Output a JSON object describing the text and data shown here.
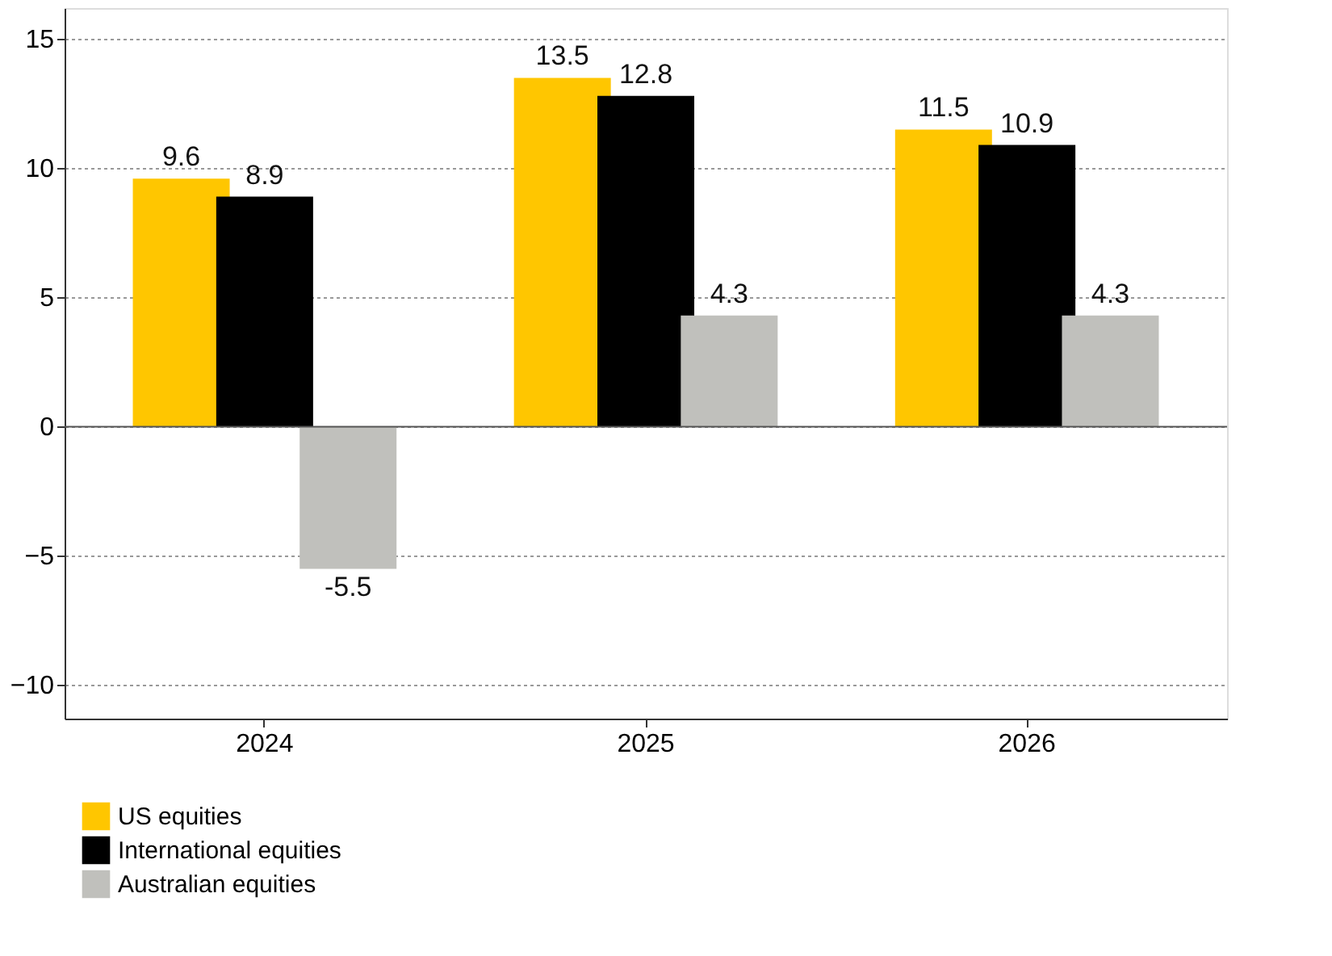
{
  "chart_data": {
    "type": "bar",
    "categories": [
      "2024",
      "2025",
      "2026"
    ],
    "series": [
      {
        "name": "US equities",
        "color": "#ffc600",
        "values": [
          9.6,
          13.5,
          11.5
        ]
      },
      {
        "name": "International equities",
        "color": "#000000",
        "values": [
          8.9,
          12.8,
          10.9
        ]
      },
      {
        "name": "Australian equities",
        "color": "#c0c0bc",
        "values": [
          -5.5,
          4.3,
          4.3
        ]
      }
    ],
    "ylim": [
      -11.3,
      16.2
    ],
    "yticks": [
      -10,
      -5,
      0,
      5,
      10,
      15
    ],
    "grid": "y",
    "data_labels": true,
    "legend": "bottom",
    "ref_lines": [
      {
        "axis": "y",
        "value": 0,
        "color": "#555555",
        "line_style": "solid"
      }
    ]
  }
}
